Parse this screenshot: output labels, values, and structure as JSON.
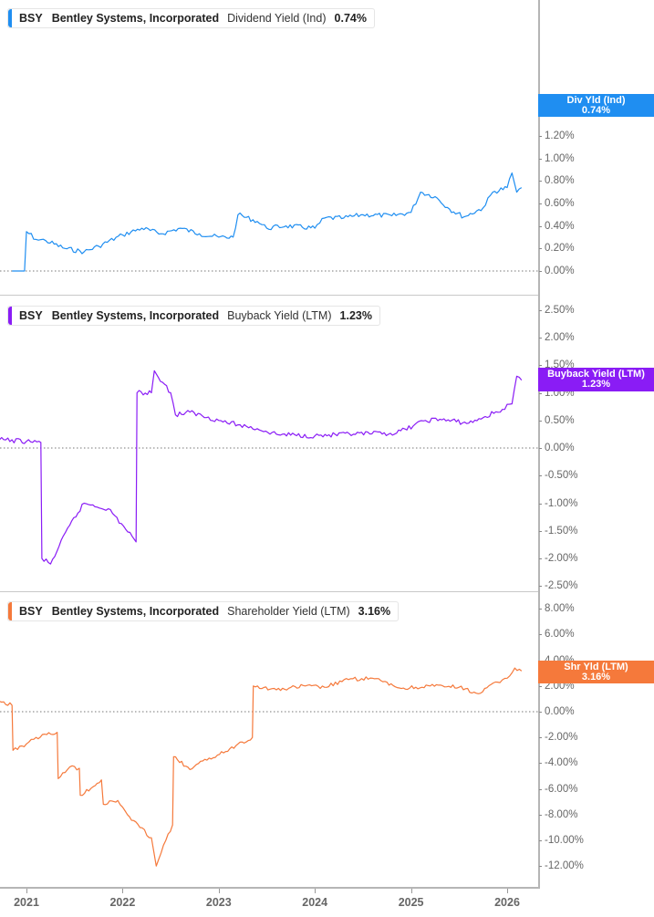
{
  "chart_data": [
    {
      "type": "line",
      "title": "BSY Bentley Systems, Incorporated Dividend Yield (Ind) 0.74%",
      "ticker": "BSY",
      "company": "Bentley Systems, Incorporated",
      "metric": "Dividend Yield (Ind)",
      "current_value": "0.74%",
      "tag_label": "Div Yld (Ind)",
      "color": "#1f8ef1",
      "ylabel": "",
      "ylim": [
        -0.1,
        1.2
      ],
      "y_ticks": [
        "1.20%",
        "1.00%",
        "0.80%",
        "0.60%",
        "0.40%",
        "0.20%",
        "0.00%"
      ],
      "x": [
        2020.85,
        2020.98,
        2021.0,
        2021.1,
        2021.2,
        2021.4,
        2021.6,
        2021.75,
        2022.0,
        2022.2,
        2022.4,
        2022.6,
        2022.8,
        2023.0,
        2023.15,
        2023.2,
        2023.4,
        2023.5,
        2023.7,
        2024.0,
        2024.1,
        2024.3,
        2024.5,
        2024.8,
        2025.0,
        2025.1,
        2025.25,
        2025.4,
        2025.55,
        2025.75,
        2025.85,
        2026.0,
        2026.05,
        2026.1,
        2026.15
      ],
      "series": [
        {
          "name": "Dividend Yield (Ind)",
          "values": [
            0.0,
            0.0,
            0.35,
            0.28,
            0.27,
            0.2,
            0.17,
            0.22,
            0.32,
            0.38,
            0.33,
            0.38,
            0.33,
            0.3,
            0.3,
            0.5,
            0.44,
            0.38,
            0.4,
            0.38,
            0.47,
            0.47,
            0.5,
            0.49,
            0.52,
            0.7,
            0.66,
            0.55,
            0.48,
            0.56,
            0.7,
            0.74,
            0.87,
            0.7,
            0.74
          ]
        }
      ]
    },
    {
      "type": "line",
      "title": "BSY Bentley Systems, Incorporated Buyback Yield (LTM) 1.23%",
      "ticker": "BSY",
      "company": "Bentley Systems, Incorporated",
      "metric": "Buyback Yield (LTM)",
      "current_value": "1.23%",
      "tag_label": "Buyback Yield (LTM)",
      "color": "#8a1cf5",
      "ylim": [
        -2.6,
        2.6
      ],
      "y_ticks": [
        "2.50%",
        "2.00%",
        "1.50%",
        "1.00%",
        "0.50%",
        "0.00%",
        "-0.50%",
        "-1.00%",
        "-1.50%",
        "-2.00%",
        "-2.50%"
      ],
      "x": [
        2020.72,
        2021.0,
        2021.15,
        2021.16,
        2021.25,
        2021.45,
        2021.6,
        2021.85,
        2022.1,
        2022.14,
        2022.15,
        2022.3,
        2022.33,
        2022.5,
        2022.55,
        2022.7,
        2023.0,
        2023.2,
        2023.4,
        2023.6,
        2024.0,
        2024.4,
        2024.85,
        2025.15,
        2025.3,
        2025.6,
        2025.75,
        2025.95,
        2026.05,
        2026.1,
        2026.15
      ],
      "series": [
        {
          "name": "Buyback Yield (LTM)",
          "values": [
            0.15,
            0.12,
            0.1,
            -2.0,
            -2.1,
            -1.4,
            -1.0,
            -1.1,
            -1.6,
            -1.7,
            1.0,
            1.0,
            1.4,
            1.0,
            0.6,
            0.65,
            0.5,
            0.42,
            0.35,
            0.25,
            0.22,
            0.25,
            0.27,
            0.5,
            0.52,
            0.45,
            0.55,
            0.7,
            0.8,
            1.3,
            1.23
          ]
        }
      ]
    },
    {
      "type": "line",
      "title": "BSY Bentley Systems, Incorporated Shareholder Yield (LTM) 3.16%",
      "ticker": "BSY",
      "company": "Bentley Systems, Incorporated",
      "metric": "Shareholder Yield (LTM)",
      "current_value": "3.16%",
      "tag_label": "Shr Yld (LTM)",
      "color": "#f5793b",
      "ylim": [
        -13,
        9
      ],
      "y_ticks": [
        "8.00%",
        "6.00%",
        "4.00%",
        "2.00%",
        "0.00%",
        "-2.00%",
        "-4.00%",
        "-6.00%",
        "-8.00%",
        "-10.00%",
        "-12.00%"
      ],
      "x": [
        2020.72,
        2020.85,
        2020.86,
        2021.0,
        2021.1,
        2021.32,
        2021.33,
        2021.45,
        2021.55,
        2021.56,
        2021.78,
        2021.8,
        2021.95,
        2022.05,
        2022.18,
        2022.3,
        2022.35,
        2022.45,
        2022.52,
        2022.53,
        2022.7,
        2022.9,
        2023.05,
        2023.2,
        2023.35,
        2023.36,
        2023.6,
        2023.9,
        2024.1,
        2024.35,
        2024.6,
        2024.9,
        2025.2,
        2025.5,
        2025.7,
        2025.9,
        2026.0,
        2026.08,
        2026.15
      ],
      "series": [
        {
          "name": "Shareholder Yield (LTM)",
          "values": [
            0.8,
            0.5,
            -3.0,
            -2.5,
            -2.0,
            -1.6,
            -5.2,
            -4.3,
            -4.4,
            -6.5,
            -5.3,
            -7.2,
            -6.9,
            -8.0,
            -9.0,
            -9.8,
            -12.0,
            -10.0,
            -8.8,
            -3.5,
            -4.5,
            -3.6,
            -3.2,
            -2.5,
            -2.0,
            2.0,
            1.7,
            2.0,
            1.9,
            2.5,
            2.6,
            1.8,
            2.0,
            1.9,
            1.4,
            2.3,
            2.6,
            3.4,
            3.16
          ]
        }
      ]
    }
  ],
  "x_axis": {
    "labels": [
      "2021",
      "2022",
      "2023",
      "2024",
      "2025",
      "2026"
    ]
  },
  "panels": [
    {
      "legend": {
        "ticker": "BSY",
        "company": "Bentley Systems, Incorporated",
        "metric": "Dividend Yield (Ind)",
        "value": "0.74%"
      },
      "tag": {
        "label": "Div Yld (Ind)",
        "value": "0.74%"
      },
      "y_ticks": [
        "1.20%",
        "1.00%",
        "0.80%",
        "0.60%",
        "0.40%",
        "0.20%",
        "0.00%"
      ]
    },
    {
      "legend": {
        "ticker": "BSY",
        "company": "Bentley Systems, Incorporated",
        "metric": "Buyback Yield (LTM)",
        "value": "1.23%"
      },
      "tag": {
        "label": "Buyback Yield (LTM)",
        "value": "1.23%"
      },
      "y_ticks": [
        "2.50%",
        "2.00%",
        "1.50%",
        "1.00%",
        "0.50%",
        "0.00%",
        "-0.50%",
        "-1.00%",
        "-1.50%",
        "-2.00%",
        "-2.50%"
      ]
    },
    {
      "legend": {
        "ticker": "BSY",
        "company": "Bentley Systems, Incorporated",
        "metric": "Shareholder Yield (LTM)",
        "value": "3.16%"
      },
      "tag": {
        "label": "Shr Yld (LTM)",
        "value": "3.16%"
      },
      "y_ticks": [
        "8.00%",
        "6.00%",
        "4.00%",
        "2.00%",
        "0.00%",
        "-2.00%",
        "-4.00%",
        "-6.00%",
        "-8.00%",
        "-10.00%",
        "-12.00%"
      ]
    }
  ],
  "colors": {
    "dividend": "#1f8ef1",
    "buyback": "#8a1cf5",
    "shareholder": "#f5793b",
    "axis": "#b5b5b5",
    "tick_text": "#666666"
  }
}
